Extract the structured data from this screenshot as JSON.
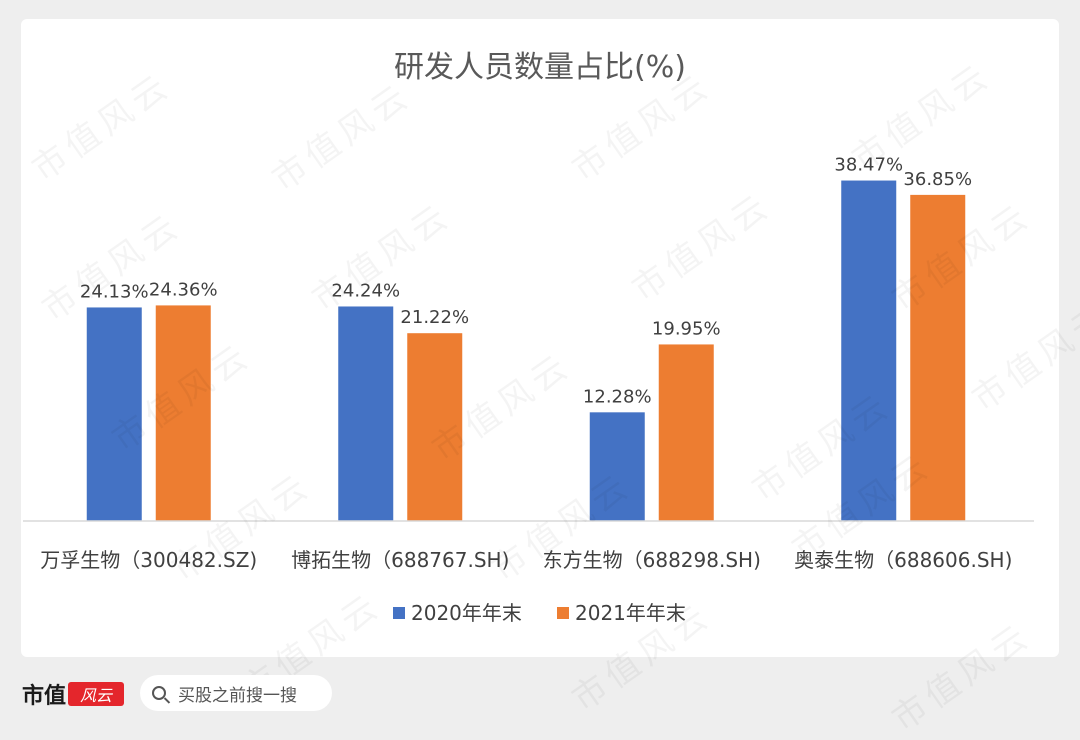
{
  "chart_data": {
    "type": "bar",
    "title": "研发人员数量占比(%)",
    "categories": [
      "万孚生物（300482.SZ)",
      "博拓生物（688767.SH)",
      "东方生物（688298.SH)",
      "奥泰生物（688606.SH)"
    ],
    "series": [
      {
        "name": "2020年年末",
        "color": "#4472c4",
        "values": [
          24.13,
          24.24,
          12.28,
          38.47
        ],
        "labels": [
          "24.13%",
          "24.24%",
          "12.28%",
          "38.47%"
        ]
      },
      {
        "name": "2021年年末",
        "color": "#ed7d31",
        "values": [
          24.36,
          21.22,
          19.95,
          36.85
        ],
        "labels": [
          "24.36%",
          "21.22%",
          "19.95%",
          "36.85%"
        ]
      }
    ],
    "ylim": [
      0,
      40
    ],
    "grid": false,
    "legend_position": "bottom"
  },
  "watermark": "市值风云",
  "footer": {
    "brand": "市值",
    "logo_text": "风云",
    "search_text": "买股之前搜一搜"
  }
}
